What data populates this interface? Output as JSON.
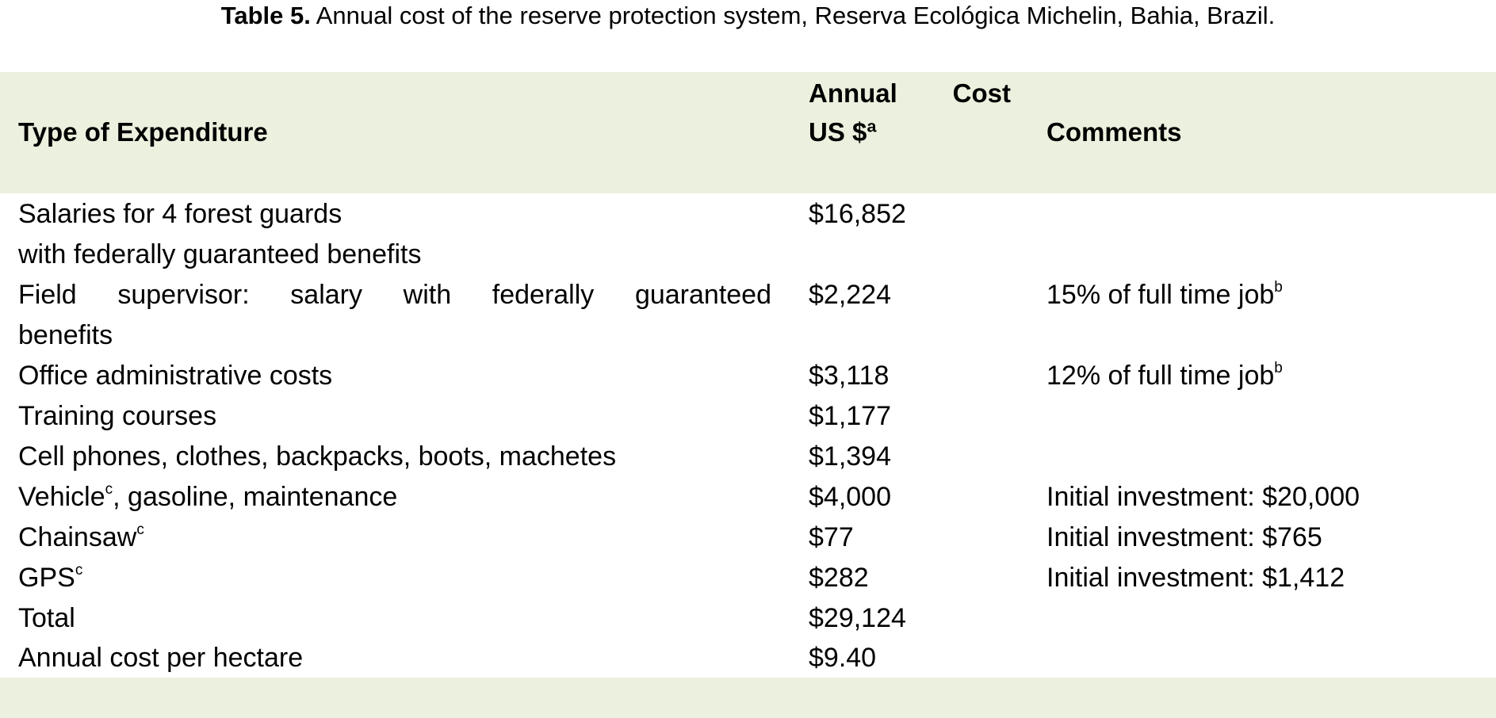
{
  "caption": {
    "label": "Table 5.",
    "text": "Annual cost of the reserve protection system, Reserva Ecológica Michelin, Bahia, Brazil."
  },
  "headers": {
    "type": "Type of Expenditure",
    "cost_line1_word1": "Annual",
    "cost_line1_word2": "Cost",
    "cost_line2": "US $ª",
    "comments": "Comments"
  },
  "rows": [
    {
      "type_line1": "Salaries for 4 forest guards",
      "type_line2": "with federally guaranteed benefits",
      "cost": "$16,852",
      "comment": ""
    },
    {
      "type_line1_words": [
        "Field",
        "supervisor:",
        "salary",
        "with",
        "federally",
        "guaranteed"
      ],
      "type_line2": "benefits",
      "cost": "$2,224",
      "comment": "15% of full time job",
      "comment_sup": "b"
    },
    {
      "type": "Office administrative costs",
      "cost": "$3,118",
      "comment": "12% of full time job",
      "comment_sup": "b"
    },
    {
      "type": "Training courses",
      "cost": "$1,177",
      "comment": ""
    },
    {
      "type": "Cell phones, clothes, backpacks, boots, machetes",
      "cost": "$1,394",
      "comment": ""
    },
    {
      "type": "Vehicle",
      "type_sup": "c",
      "type_rest": ", gasoline, maintenance",
      "cost": "$4,000",
      "comment": "Initial investment: $20,000"
    },
    {
      "type": "Chainsaw",
      "type_sup": "c",
      "cost": "$77",
      "comment": "Initial investment: $765"
    },
    {
      "type": "GPS",
      "type_sup": "c",
      "cost": "$282",
      "comment": "Initial investment: $1,412"
    },
    {
      "type": "Total",
      "cost": "$29,124",
      "comment": ""
    },
    {
      "type": "Annual cost per hectare",
      "cost": "$9.40",
      "comment": ""
    }
  ],
  "colors": {
    "band": "#ebf1de",
    "text": "#000000"
  }
}
